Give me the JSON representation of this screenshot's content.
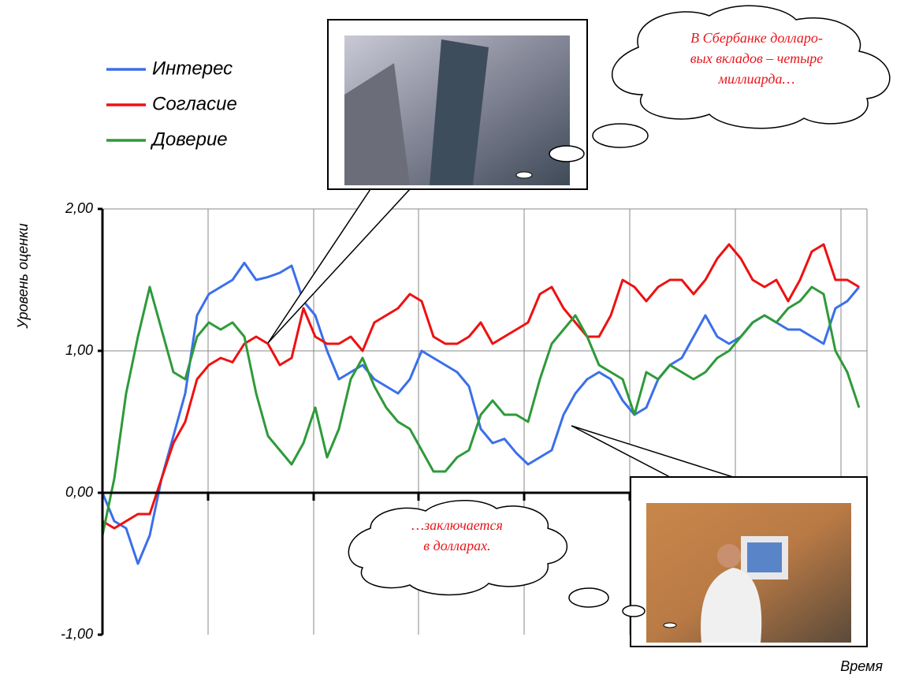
{
  "chart_data": {
    "type": "line",
    "y_label": "Уровень оценки",
    "x_label": "Время",
    "ylim": [
      -1,
      2
    ],
    "yticks": [
      {
        "value": -1,
        "label": "-1,00"
      },
      {
        "value": 0,
        "label": "0,00"
      },
      {
        "value": 1,
        "label": "1,00"
      },
      {
        "value": 2,
        "label": "2,00"
      }
    ],
    "grid": true,
    "series": [
      {
        "name": "Интерес",
        "color": "#3b6fea",
        "values": [
          0.0,
          -0.2,
          -0.25,
          -0.5,
          -0.3,
          0.1,
          0.4,
          0.7,
          1.25,
          1.4,
          1.45,
          1.5,
          1.62,
          1.5,
          1.52,
          1.55,
          1.6,
          1.35,
          1.25,
          1.0,
          0.8,
          0.85,
          0.9,
          0.8,
          0.75,
          0.7,
          0.8,
          1.0,
          0.95,
          0.9,
          0.85,
          0.75,
          0.45,
          0.35,
          0.38,
          0.28,
          0.2,
          0.25,
          0.3,
          0.55,
          0.7,
          0.8,
          0.85,
          0.8,
          0.65,
          0.55,
          0.6,
          0.8,
          0.9,
          0.95,
          1.1,
          1.25,
          1.1,
          1.05,
          1.1,
          1.2,
          1.25,
          1.2,
          1.15,
          1.15,
          1.1,
          1.05,
          1.3,
          1.35,
          1.45
        ]
      },
      {
        "name": "Согласие",
        "color": "#ee1111",
        "values": [
          -0.2,
          -0.25,
          -0.2,
          -0.15,
          -0.15,
          0.1,
          0.35,
          0.5,
          0.8,
          0.9,
          0.95,
          0.92,
          1.05,
          1.1,
          1.05,
          0.9,
          0.95,
          1.3,
          1.1,
          1.05,
          1.05,
          1.1,
          1.0,
          1.2,
          1.25,
          1.3,
          1.4,
          1.35,
          1.1,
          1.05,
          1.05,
          1.1,
          1.2,
          1.05,
          1.1,
          1.15,
          1.2,
          1.4,
          1.45,
          1.3,
          1.2,
          1.1,
          1.1,
          1.25,
          1.5,
          1.45,
          1.35,
          1.45,
          1.5,
          1.5,
          1.4,
          1.5,
          1.65,
          1.75,
          1.65,
          1.5,
          1.45,
          1.5,
          1.35,
          1.5,
          1.7,
          1.75,
          1.5,
          1.5,
          1.45
        ]
      },
      {
        "name": "Доверие",
        "color": "#2e9a3a",
        "values": [
          -0.3,
          0.1,
          0.7,
          1.1,
          1.45,
          1.15,
          0.85,
          0.8,
          1.1,
          1.2,
          1.15,
          1.2,
          1.1,
          0.7,
          0.4,
          0.3,
          0.2,
          0.35,
          0.6,
          0.25,
          0.45,
          0.8,
          0.95,
          0.75,
          0.6,
          0.5,
          0.45,
          0.3,
          0.15,
          0.15,
          0.25,
          0.3,
          0.55,
          0.65,
          0.55,
          0.55,
          0.5,
          0.8,
          1.05,
          1.15,
          1.25,
          1.1,
          0.9,
          0.85,
          0.8,
          0.55,
          0.85,
          0.8,
          0.9,
          0.85,
          0.8,
          0.85,
          0.95,
          1.0,
          1.1,
          1.2,
          1.25,
          1.2,
          1.3,
          1.35,
          1.45,
          1.4,
          1.0,
          0.85,
          0.6
        ]
      }
    ]
  },
  "callouts": [
    {
      "lines": [
        "В Сбербанке долларо-",
        "вых вкладов – четыре",
        "миллиарда…"
      ]
    },
    {
      "lines": [
        "…заключается",
        "в долларах."
      ]
    }
  ]
}
